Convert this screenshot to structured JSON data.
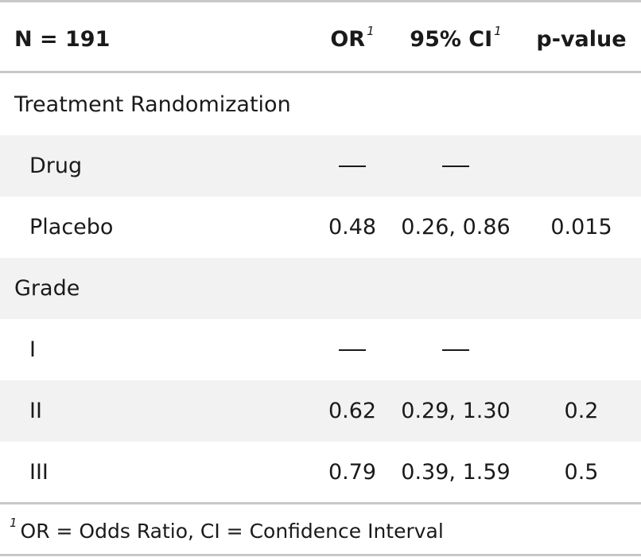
{
  "table": {
    "header": {
      "label": "N = 191",
      "or": "OR",
      "ci": "95% CI",
      "p": "p-value",
      "footnote_marker": "1"
    },
    "rows": [
      {
        "label": "Treatment Randomization",
        "type": "group",
        "or": "",
        "ci": "",
        "p": ""
      },
      {
        "label": "Drug",
        "type": "level",
        "or": "—",
        "ci": "—",
        "p": ""
      },
      {
        "label": "Placebo",
        "type": "level",
        "or": "0.48",
        "ci": "0.26, 0.86",
        "p": "0.015"
      },
      {
        "label": "Grade",
        "type": "group",
        "or": "",
        "ci": "",
        "p": ""
      },
      {
        "label": "I",
        "type": "level",
        "or": "—",
        "ci": "—",
        "p": ""
      },
      {
        "label": "II",
        "type": "level",
        "or": "0.62",
        "ci": "0.29, 1.30",
        "p": "0.2"
      },
      {
        "label": "III",
        "type": "level",
        "or": "0.79",
        "ci": "0.39, 1.59",
        "p": "0.5"
      }
    ],
    "footnote": {
      "marker": "1",
      "text": "OR = Odds Ratio, CI = Confidence Interval"
    }
  }
}
